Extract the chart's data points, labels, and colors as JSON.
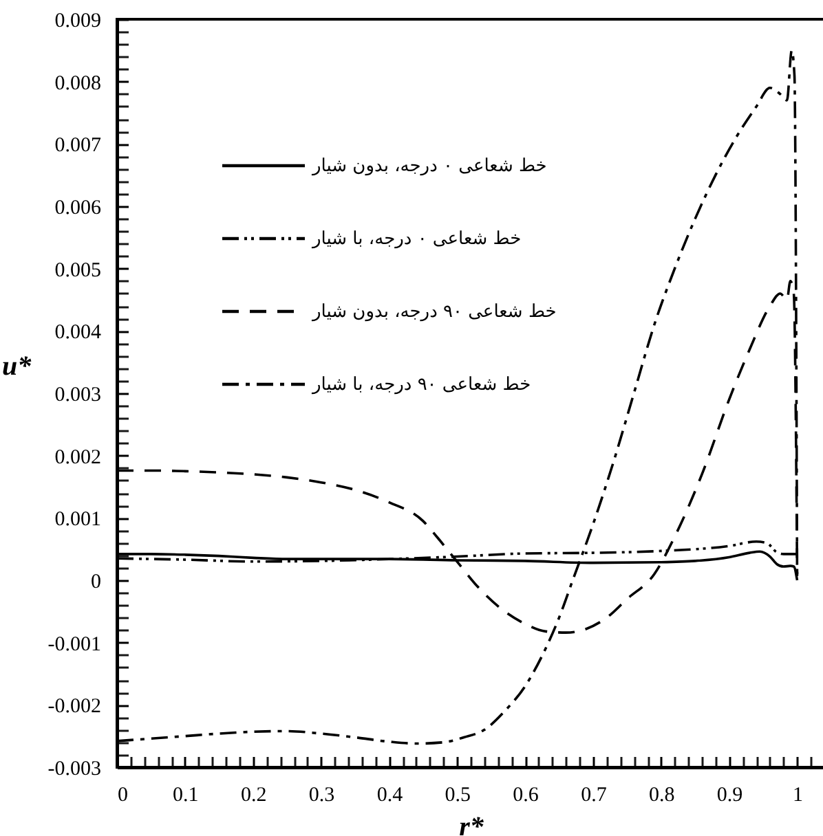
{
  "chart_data": {
    "type": "line",
    "xlabel": "r*",
    "ylabel": "u*",
    "legend": "top left",
    "grid": false,
    "xlim": [
      0,
      1.04
    ],
    "ylim": [
      -0.003,
      0.009
    ],
    "xticks": [
      0,
      {
        "value": 0.02,
        "label": null
      },
      {
        "value": 0.04,
        "label": null
      },
      {
        "value": 0.06,
        "label": null
      },
      {
        "value": 0.08,
        "label": null
      },
      0.1,
      {
        "value": 0.12,
        "label": null
      },
      {
        "value": 0.14,
        "label": null
      },
      {
        "value": 0.16,
        "label": null
      },
      {
        "value": 0.18,
        "label": null
      },
      0.2,
      {
        "value": 0.22,
        "label": null
      },
      {
        "value": 0.24,
        "label": null
      },
      {
        "value": 0.26,
        "label": null
      },
      {
        "value": 0.28,
        "label": null
      },
      0.3,
      {
        "value": 0.32,
        "label": null
      },
      {
        "value": 0.34,
        "label": null
      },
      {
        "value": 0.36,
        "label": null
      },
      {
        "value": 0.38,
        "label": null
      },
      0.4,
      {
        "value": 0.42,
        "label": null
      },
      {
        "value": 0.44,
        "label": null
      },
      {
        "value": 0.46,
        "label": null
      },
      {
        "value": 0.48,
        "label": null
      },
      0.5,
      {
        "value": 0.52,
        "label": null
      },
      {
        "value": 0.54,
        "label": null
      },
      {
        "value": 0.56,
        "label": null
      },
      {
        "value": 0.58,
        "label": null
      },
      0.6,
      {
        "value": 0.62,
        "label": null
      },
      {
        "value": 0.64,
        "label": null
      },
      {
        "value": 0.66,
        "label": null
      },
      {
        "value": 0.68,
        "label": null
      },
      0.7,
      {
        "value": 0.72,
        "label": null
      },
      {
        "value": 0.74,
        "label": null
      },
      {
        "value": 0.76,
        "label": null
      },
      {
        "value": 0.78,
        "label": null
      },
      0.8,
      {
        "value": 0.82,
        "label": null
      },
      {
        "value": 0.84,
        "label": null
      },
      {
        "value": 0.86,
        "label": null
      },
      {
        "value": 0.88,
        "label": null
      },
      0.9,
      {
        "value": 0.92,
        "label": null
      },
      {
        "value": 0.94,
        "label": null
      },
      {
        "value": 0.96,
        "label": null
      },
      {
        "value": 0.98,
        "label": null
      },
      1,
      {
        "value": 1.02,
        "label": null
      },
      {
        "value": 1.04,
        "label": null
      }
    ],
    "yticks": [
      -0.003,
      {
        "value": -0.0028,
        "label": null
      },
      {
        "value": -0.0026,
        "label": null
      },
      {
        "value": -0.0024,
        "label": null
      },
      {
        "value": -0.0022,
        "label": null
      },
      -0.002,
      {
        "value": -0.0018,
        "label": null
      },
      {
        "value": -0.0016,
        "label": null
      },
      {
        "value": -0.0014,
        "label": null
      },
      {
        "value": -0.0012,
        "label": null
      },
      -0.001,
      {
        "value": -0.0008,
        "label": null
      },
      {
        "value": -0.0006,
        "label": null
      },
      {
        "value": -0.0004,
        "label": null
      },
      {
        "value": -0.0002,
        "label": null
      },
      0,
      {
        "value": 0.0002,
        "label": null
      },
      {
        "value": 0.0004,
        "label": null
      },
      {
        "value": 0.0006,
        "label": null
      },
      {
        "value": 0.0008,
        "label": null
      },
      0.001,
      {
        "value": 0.0012,
        "label": null
      },
      {
        "value": 0.0014,
        "label": null
      },
      {
        "value": 0.0016,
        "label": null
      },
      {
        "value": 0.0018,
        "label": null
      },
      0.002,
      {
        "value": 0.0022,
        "label": null
      },
      {
        "value": 0.0024,
        "label": null
      },
      {
        "value": 0.0026,
        "label": null
      },
      {
        "value": 0.0028,
        "label": null
      },
      0.003,
      {
        "value": 0.0032,
        "label": null
      },
      {
        "value": 0.0034,
        "label": null
      },
      {
        "value": 0.0036,
        "label": null
      },
      {
        "value": 0.0038,
        "label": null
      },
      0.004,
      {
        "value": 0.0042,
        "label": null
      },
      {
        "value": 0.0044,
        "label": null
      },
      {
        "value": 0.0046,
        "label": null
      },
      {
        "value": 0.0048,
        "label": null
      },
      0.005,
      {
        "value": 0.0052,
        "label": null
      },
      {
        "value": 0.0054,
        "label": null
      },
      {
        "value": 0.0056,
        "label": null
      },
      {
        "value": 0.0058,
        "label": null
      },
      0.006,
      {
        "value": 0.0062,
        "label": null
      },
      {
        "value": 0.0064,
        "label": null
      },
      {
        "value": 0.0066,
        "label": null
      },
      {
        "value": 0.0068,
        "label": null
      },
      0.007,
      {
        "value": 0.0072,
        "label": null
      },
      {
        "value": 0.0074,
        "label": null
      },
      {
        "value": 0.0076,
        "label": null
      },
      {
        "value": 0.0078,
        "label": null
      },
      0.008,
      {
        "value": 0.0082,
        "label": null
      },
      {
        "value": 0.0084,
        "label": null
      },
      {
        "value": 0.0086,
        "label": null
      },
      {
        "value": 0.0088,
        "label": null
      },
      0.009
    ],
    "series": [
      {
        "name": "خط شعاعی ۰ درجه، بدون شیار",
        "color": "#000000",
        "line_style": "solid",
        "x": [
          0,
          0.05,
          0.1,
          0.15,
          0.2,
          0.25,
          0.3,
          0.4,
          0.5,
          0.6,
          0.7,
          0.8,
          0.85,
          0.9,
          0.93,
          0.945,
          0.96,
          0.97,
          0.98,
          0.99,
          0.995,
          1.0
        ],
        "values": [
          0.00042,
          0.00042,
          0.00041,
          0.00039,
          0.00036,
          0.00034,
          0.00034,
          0.00034,
          0.00032,
          0.00031,
          0.00028,
          0.00029,
          0.00031,
          0.00037,
          0.00044,
          0.00046,
          0.00038,
          0.00026,
          0.00022,
          0.00023,
          0.00022,
          0.0
        ]
      },
      {
        "name": "خط شعاعی ۰ درجه، با شیار",
        "color": "#000000",
        "line_style": "dashdotdot",
        "x": [
          0,
          0.1,
          0.2,
          0.3,
          0.4,
          0.5,
          0.6,
          0.7,
          0.8,
          0.9,
          0.94,
          0.955,
          0.97,
          0.98,
          1.0
        ],
        "values": [
          0.00035,
          0.00033,
          0.0003,
          0.00031,
          0.00034,
          0.00038,
          0.00043,
          0.00044,
          0.00047,
          0.00055,
          0.00062,
          0.0006,
          0.00045,
          0.00042,
          0.00042
        ]
      },
      {
        "name": "خط شعاعی ۹۰ درجه، بدون شیار",
        "color": "#000000",
        "line_style": "dashed",
        "x": [
          0,
          0.05,
          0.1,
          0.15,
          0.2,
          0.25,
          0.3,
          0.35,
          0.4,
          0.45,
          0.47,
          0.5,
          0.53,
          0.57,
          0.6,
          0.63,
          0.66,
          0.69,
          0.72,
          0.75,
          0.79,
          0.82,
          0.86,
          0.9,
          0.93,
          0.96,
          0.975,
          0.985,
          0.99,
          0.995,
          1.0
        ],
        "values": [
          0.00176,
          0.00176,
          0.00175,
          0.00173,
          0.0017,
          0.00165,
          0.00157,
          0.00145,
          0.00125,
          0.00095,
          0.0007,
          0.0003,
          -0.0001,
          -0.0005,
          -0.0007,
          -0.00082,
          -0.00084,
          -0.00078,
          -0.0006,
          -0.0003,
          0.0001,
          0.0007,
          0.0017,
          0.0029,
          0.0037,
          0.0044,
          0.0046,
          0.0045,
          0.0048,
          0.0046,
          0.0001
        ]
      },
      {
        "name": "خط شعاعی ۹۰ درجه، با شیار",
        "color": "#000000",
        "line_style": "dashdot",
        "x": [
          0,
          0.05,
          0.1,
          0.15,
          0.2,
          0.25,
          0.3,
          0.35,
          0.4,
          0.44,
          0.48,
          0.51,
          0.54,
          0.57,
          0.6,
          0.63,
          0.65,
          0.67,
          0.7,
          0.73,
          0.76,
          0.79,
          0.82,
          0.85,
          0.88,
          0.91,
          0.94,
          0.96,
          0.975,
          0.985,
          0.992,
          0.996,
          1.0
        ],
        "values": [
          -0.00258,
          -0.00254,
          -0.0025,
          -0.00246,
          -0.00243,
          -0.00242,
          -0.00246,
          -0.00252,
          -0.00259,
          -0.00262,
          -0.0026,
          -0.00252,
          -0.0024,
          -0.0021,
          -0.0017,
          -0.0011,
          -0.0006,
          0.0,
          0.0009,
          0.0019,
          0.003,
          0.0041,
          0.005,
          0.0058,
          0.0065,
          0.0071,
          0.0076,
          0.0079,
          0.0078,
          0.0077,
          0.0085,
          0.0081,
          0.0
        ]
      }
    ]
  }
}
